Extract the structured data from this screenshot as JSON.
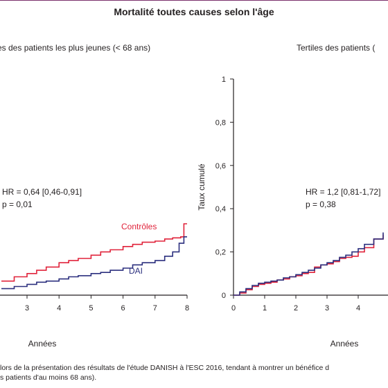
{
  "title": "Mortalité toutes causes selon l'âge",
  "caption": {
    "line1": "lors de la présentation des résultats de l'étude DANISH à l'ESC 2016, tendant à montrer un bénéfice d",
    "line2": "s patients d'au moins 68 ans)."
  },
  "colors": {
    "controls": "#e0223a",
    "dai": "#2b2f7e",
    "text": "#231f20",
    "frame": "#7a2f6b"
  },
  "chart_data": [
    {
      "type": "line",
      "title": "es des patients les plus jeunes (< 68 ans)",
      "xlabel": "Années",
      "ylabel": "",
      "xticks": [
        3,
        4,
        5,
        6,
        7,
        8
      ],
      "xlim": [
        3,
        8
      ],
      "ylim": [
        0,
        1
      ],
      "grid": false,
      "annotations": [
        "HR = 0,64 [0,46-0,91]",
        "p = 0,01"
      ],
      "series": [
        {
          "name": "Contrôles",
          "color": "#e0223a",
          "x": [
            2.2,
            2.6,
            3.0,
            3.3,
            3.6,
            4.0,
            4.3,
            4.6,
            5.0,
            5.3,
            5.6,
            6.0,
            6.3,
            6.6,
            7.0,
            7.3,
            7.55,
            7.8,
            7.9,
            7.9,
            8.0
          ],
          "y": [
            0.065,
            0.085,
            0.1,
            0.115,
            0.13,
            0.15,
            0.16,
            0.17,
            0.185,
            0.2,
            0.21,
            0.225,
            0.235,
            0.245,
            0.25,
            0.26,
            0.265,
            0.27,
            0.27,
            0.33,
            0.33
          ]
        },
        {
          "name": "DAI",
          "color": "#2b2f7e",
          "x": [
            2.2,
            2.6,
            3.0,
            3.3,
            3.6,
            4.0,
            4.3,
            4.6,
            5.0,
            5.3,
            5.6,
            6.0,
            6.3,
            6.6,
            7.0,
            7.3,
            7.55,
            7.75,
            7.9,
            8.0
          ],
          "y": [
            0.03,
            0.04,
            0.05,
            0.06,
            0.065,
            0.075,
            0.085,
            0.09,
            0.1,
            0.105,
            0.115,
            0.125,
            0.14,
            0.15,
            0.16,
            0.18,
            0.2,
            0.24,
            0.27,
            0.27
          ]
        }
      ]
    },
    {
      "type": "line",
      "title": "Tertiles des patients (",
      "xlabel": "Années",
      "ylabel": "Taux cumulé",
      "xticks": [
        0,
        1,
        2,
        3,
        4
      ],
      "yticks": [
        "0",
        "0,2",
        "0,4",
        "0,6",
        "0,8",
        "1"
      ],
      "xlim": [
        0,
        4
      ],
      "ylim": [
        0,
        1
      ],
      "grid": false,
      "annotations": [
        "HR = 1,2 [0,81-1,72]",
        "p = 0,38"
      ],
      "series": [
        {
          "color": "#e0223a",
          "x": [
            0,
            0.2,
            0.4,
            0.6,
            0.8,
            1.0,
            1.2,
            1.4,
            1.6,
            1.8,
            2.0,
            2.2,
            2.4,
            2.6,
            2.8,
            3.0,
            3.2,
            3.4,
            3.6,
            3.8,
            4.0,
            4.2,
            4.5,
            4.8
          ],
          "y": [
            0,
            0.01,
            0.025,
            0.04,
            0.05,
            0.055,
            0.06,
            0.07,
            0.075,
            0.085,
            0.09,
            0.1,
            0.105,
            0.13,
            0.14,
            0.145,
            0.155,
            0.17,
            0.175,
            0.18,
            0.2,
            0.22,
            0.26,
            0.28
          ]
        },
        {
          "color": "#2b2f7e",
          "x": [
            0,
            0.2,
            0.4,
            0.6,
            0.8,
            1.0,
            1.2,
            1.4,
            1.6,
            1.8,
            2.0,
            2.2,
            2.4,
            2.6,
            2.8,
            3.0,
            3.2,
            3.4,
            3.6,
            3.8,
            4.0,
            4.2,
            4.5,
            4.8
          ],
          "y": [
            0,
            0.015,
            0.03,
            0.045,
            0.055,
            0.06,
            0.065,
            0.07,
            0.08,
            0.085,
            0.095,
            0.105,
            0.115,
            0.125,
            0.14,
            0.15,
            0.16,
            0.175,
            0.185,
            0.2,
            0.215,
            0.235,
            0.26,
            0.29
          ]
        }
      ]
    }
  ]
}
